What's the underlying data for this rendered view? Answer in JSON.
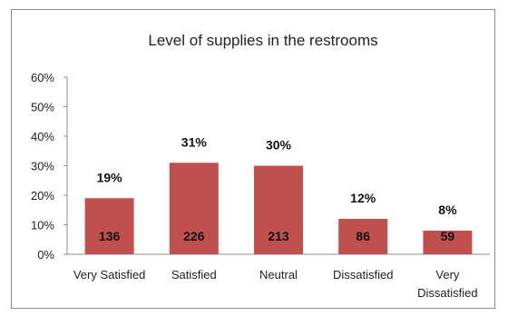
{
  "chart_data": {
    "type": "bar",
    "title": "Level of supplies in the restrooms",
    "xlabel": "",
    "ylabel": "",
    "categories": [
      "Very Satisfied",
      "Satisfied",
      "Neutral",
      "Dissatisfied",
      "Very Dissatisfied"
    ],
    "category_lines": [
      [
        "Very Satisfied"
      ],
      [
        "Satisfied"
      ],
      [
        "Neutral"
      ],
      [
        "Dissatisfied"
      ],
      [
        "Very",
        "Dissatisfied"
      ]
    ],
    "values": [
      19,
      31,
      30,
      12,
      8
    ],
    "percent_labels": [
      "19%",
      "31%",
      "30%",
      "12%",
      "8%"
    ],
    "count_labels": [
      "136",
      "226",
      "213",
      "86",
      "59"
    ],
    "ylim": [
      0,
      60
    ],
    "yticks": [
      "0%",
      "10%",
      "20%",
      "30%",
      "40%",
      "50%",
      "60%"
    ],
    "grid": false,
    "legend": "none",
    "bar_color": "#c0504d"
  }
}
